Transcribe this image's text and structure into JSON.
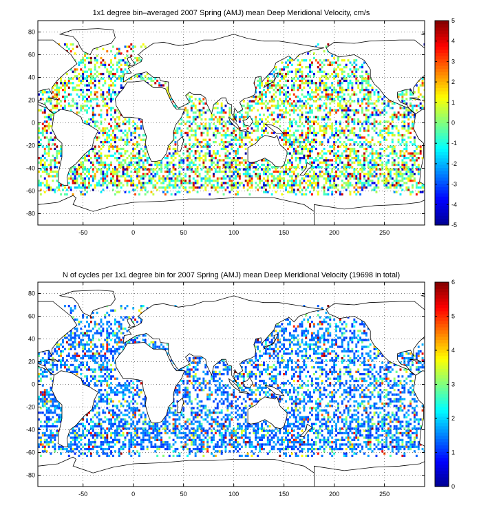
{
  "chart_data": [
    {
      "type": "heatmap",
      "title": "1x1 degree bin–averaged 2007 Spring (AMJ) mean Deep Meridional Velocity, cm/s",
      "xlabel": "",
      "ylabel": "",
      "xlim": [
        -95,
        290
      ],
      "ylim": [
        -90,
        90
      ],
      "x_ticks": [
        -50,
        0,
        50,
        100,
        150,
        200,
        250
      ],
      "y_ticks": [
        -80,
        -60,
        -40,
        -20,
        0,
        20,
        40,
        60,
        80
      ],
      "grid": true,
      "colorbar": {
        "min": -5,
        "max": 5,
        "ticks": [
          -5,
          -4,
          -3,
          -2,
          -1,
          0,
          1,
          2,
          3,
          4,
          5
        ],
        "colormap": "jet"
      },
      "value_distribution": "diverging"
    },
    {
      "type": "heatmap",
      "title": "N of cycles per 1x1 degree bin for 2007 Spring (AMJ) mean Deep Meridional Velocity (19698 in total)",
      "xlabel": "",
      "ylabel": "",
      "xlim": [
        -95,
        290
      ],
      "ylim": [
        -90,
        90
      ],
      "x_ticks": [
        -50,
        0,
        50,
        100,
        150,
        200,
        250
      ],
      "y_ticks": [
        -80,
        -60,
        -40,
        -20,
        0,
        20,
        40,
        60,
        80
      ],
      "grid": true,
      "colorbar": {
        "min": 0,
        "max": 6,
        "ticks": [
          0,
          1,
          2,
          3,
          4,
          5,
          6
        ],
        "colormap": "jet"
      },
      "value_distribution": "counts"
    }
  ],
  "colors": {
    "jet": [
      "#00008f",
      "#0000ff",
      "#0080ff",
      "#00ffff",
      "#80ff80",
      "#ffff00",
      "#ff8000",
      "#ff0000",
      "#800000"
    ],
    "land_outline": "#000000",
    "grid": "#000000"
  }
}
